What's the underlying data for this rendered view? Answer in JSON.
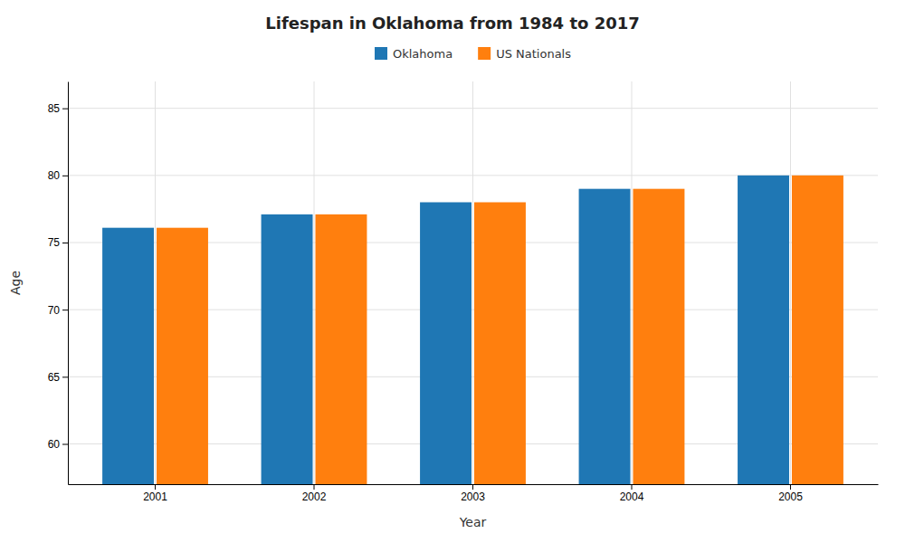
{
  "chart_data": {
    "type": "bar",
    "title": "Lifespan in Oklahoma from 1984 to 2017",
    "xlabel": "Year",
    "ylabel": "Age",
    "categories": [
      "2001",
      "2002",
      "2003",
      "2004",
      "2005"
    ],
    "series": [
      {
        "name": "Oklahoma",
        "values": [
          76.1,
          77.1,
          78.0,
          79.0,
          80.0
        ]
      },
      {
        "name": "US Nationals",
        "values": [
          76.1,
          77.1,
          78.0,
          79.0,
          80.0
        ]
      }
    ],
    "ylim": [
      57,
      87
    ],
    "yticks": [
      60,
      65,
      70,
      75,
      80,
      85
    ],
    "grid": true,
    "legend": "top"
  }
}
